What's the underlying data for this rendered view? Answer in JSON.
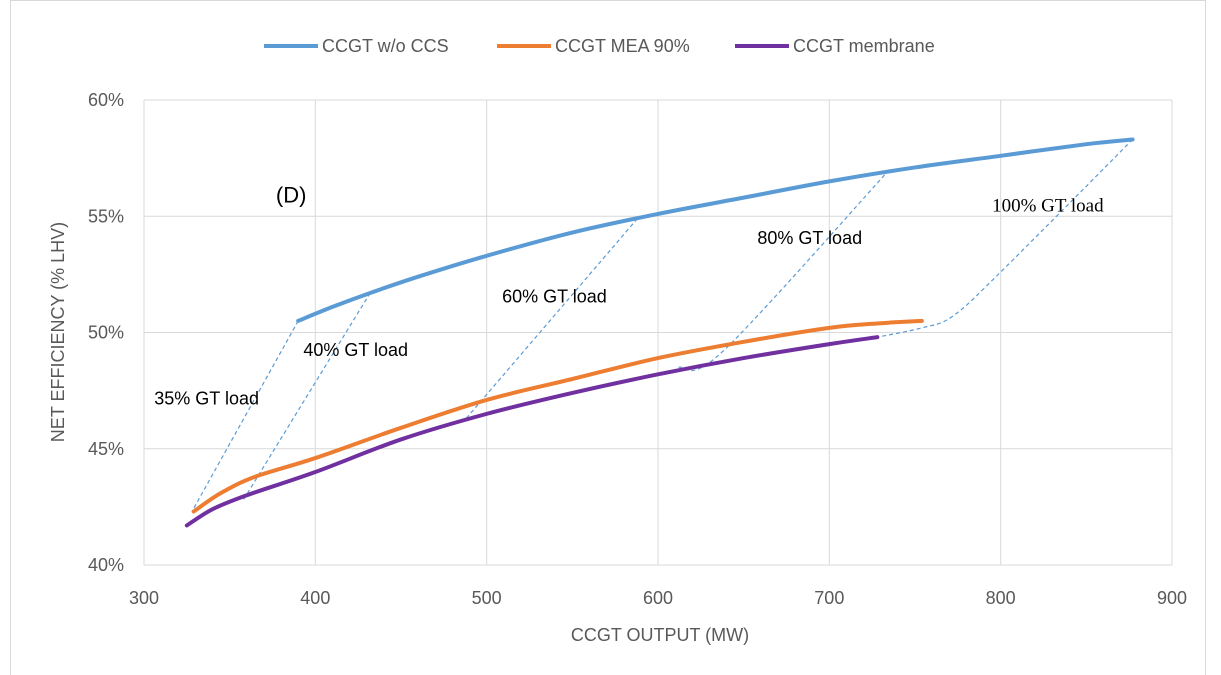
{
  "chart_data": {
    "type": "line",
    "title": "",
    "xlabel": "CCGT OUTPUT (MW)",
    "ylabel": "NET EFFICIENCY (% LHV)",
    "xlim": [
      300,
      900
    ],
    "ylim": [
      40,
      60
    ],
    "x_ticks": [
      300,
      400,
      500,
      600,
      700,
      800,
      900
    ],
    "x_tick_labels": [
      "300",
      "400",
      "500",
      "600",
      "700",
      "800",
      "900"
    ],
    "y_ticks": [
      40,
      45,
      50,
      55,
      60
    ],
    "y_tick_labels": [
      "40%",
      "45%",
      "50%",
      "55%",
      "60%"
    ],
    "grid": true,
    "legend_position": "top",
    "series": [
      {
        "name": "CCGT w/o CCS",
        "color": "#5b9bd5",
        "x": [
          390,
          410,
          432,
          460,
          500,
          550,
          600,
          650,
          700,
          750,
          800,
          850,
          877
        ],
        "y": [
          50.5,
          51.1,
          51.7,
          52.4,
          53.3,
          54.3,
          55.1,
          55.8,
          56.5,
          57.1,
          57.6,
          58.1,
          58.3
        ]
      },
      {
        "name": "CCGT MEA 90%",
        "color": "#ed7d31",
        "x": [
          329,
          345,
          365,
          400,
          450,
          500,
          550,
          600,
          650,
          700,
          730,
          754
        ],
        "y": [
          42.3,
          43.1,
          43.8,
          44.6,
          45.9,
          47.1,
          48.0,
          48.9,
          49.6,
          50.2,
          50.4,
          50.5
        ]
      },
      {
        "name": "CCGT membrane",
        "color": "#7030a0",
        "x": [
          325,
          340,
          360,
          400,
          450,
          500,
          550,
          600,
          650,
          700,
          728
        ],
        "y": [
          41.7,
          42.4,
          43.0,
          44.0,
          45.4,
          46.5,
          47.4,
          48.2,
          48.9,
          49.5,
          49.8
        ]
      }
    ],
    "annotations": [
      {
        "text": "(D)",
        "x": 377,
        "y": 55.6,
        "style": "sans-large"
      },
      {
        "text": "35% GT load",
        "x": 306,
        "y": 46.9,
        "style": "sans"
      },
      {
        "text": "40% GT load",
        "x": 393,
        "y": 49.0,
        "style": "sans"
      },
      {
        "text": "60% GT load",
        "x": 509,
        "y": 51.3,
        "style": "sans"
      },
      {
        "text": "80% GT load",
        "x": 658,
        "y": 53.8,
        "style": "sans"
      },
      {
        "text": "100% GT load",
        "x": 795,
        "y": 55.2,
        "style": "serif"
      }
    ],
    "load_lines": [
      {
        "points": [
          [
            390,
            50.5
          ],
          [
            328,
            42.3
          ]
        ]
      },
      {
        "points": [
          [
            432,
            51.7
          ],
          [
            358,
            42.8
          ]
        ]
      },
      {
        "points": [
          [
            588,
            54.9
          ],
          [
            488,
            46.3
          ]
        ]
      },
      {
        "points": [
          [
            735,
            57.0
          ],
          [
            638,
            49.2
          ],
          [
            612,
            48.5
          ]
        ]
      },
      {
        "points": [
          [
            877,
            58.3
          ],
          [
            800,
            52.6
          ],
          [
            772,
            50.7
          ],
          [
            754,
            50.2
          ],
          [
            728,
            49.8
          ]
        ]
      }
    ]
  }
}
